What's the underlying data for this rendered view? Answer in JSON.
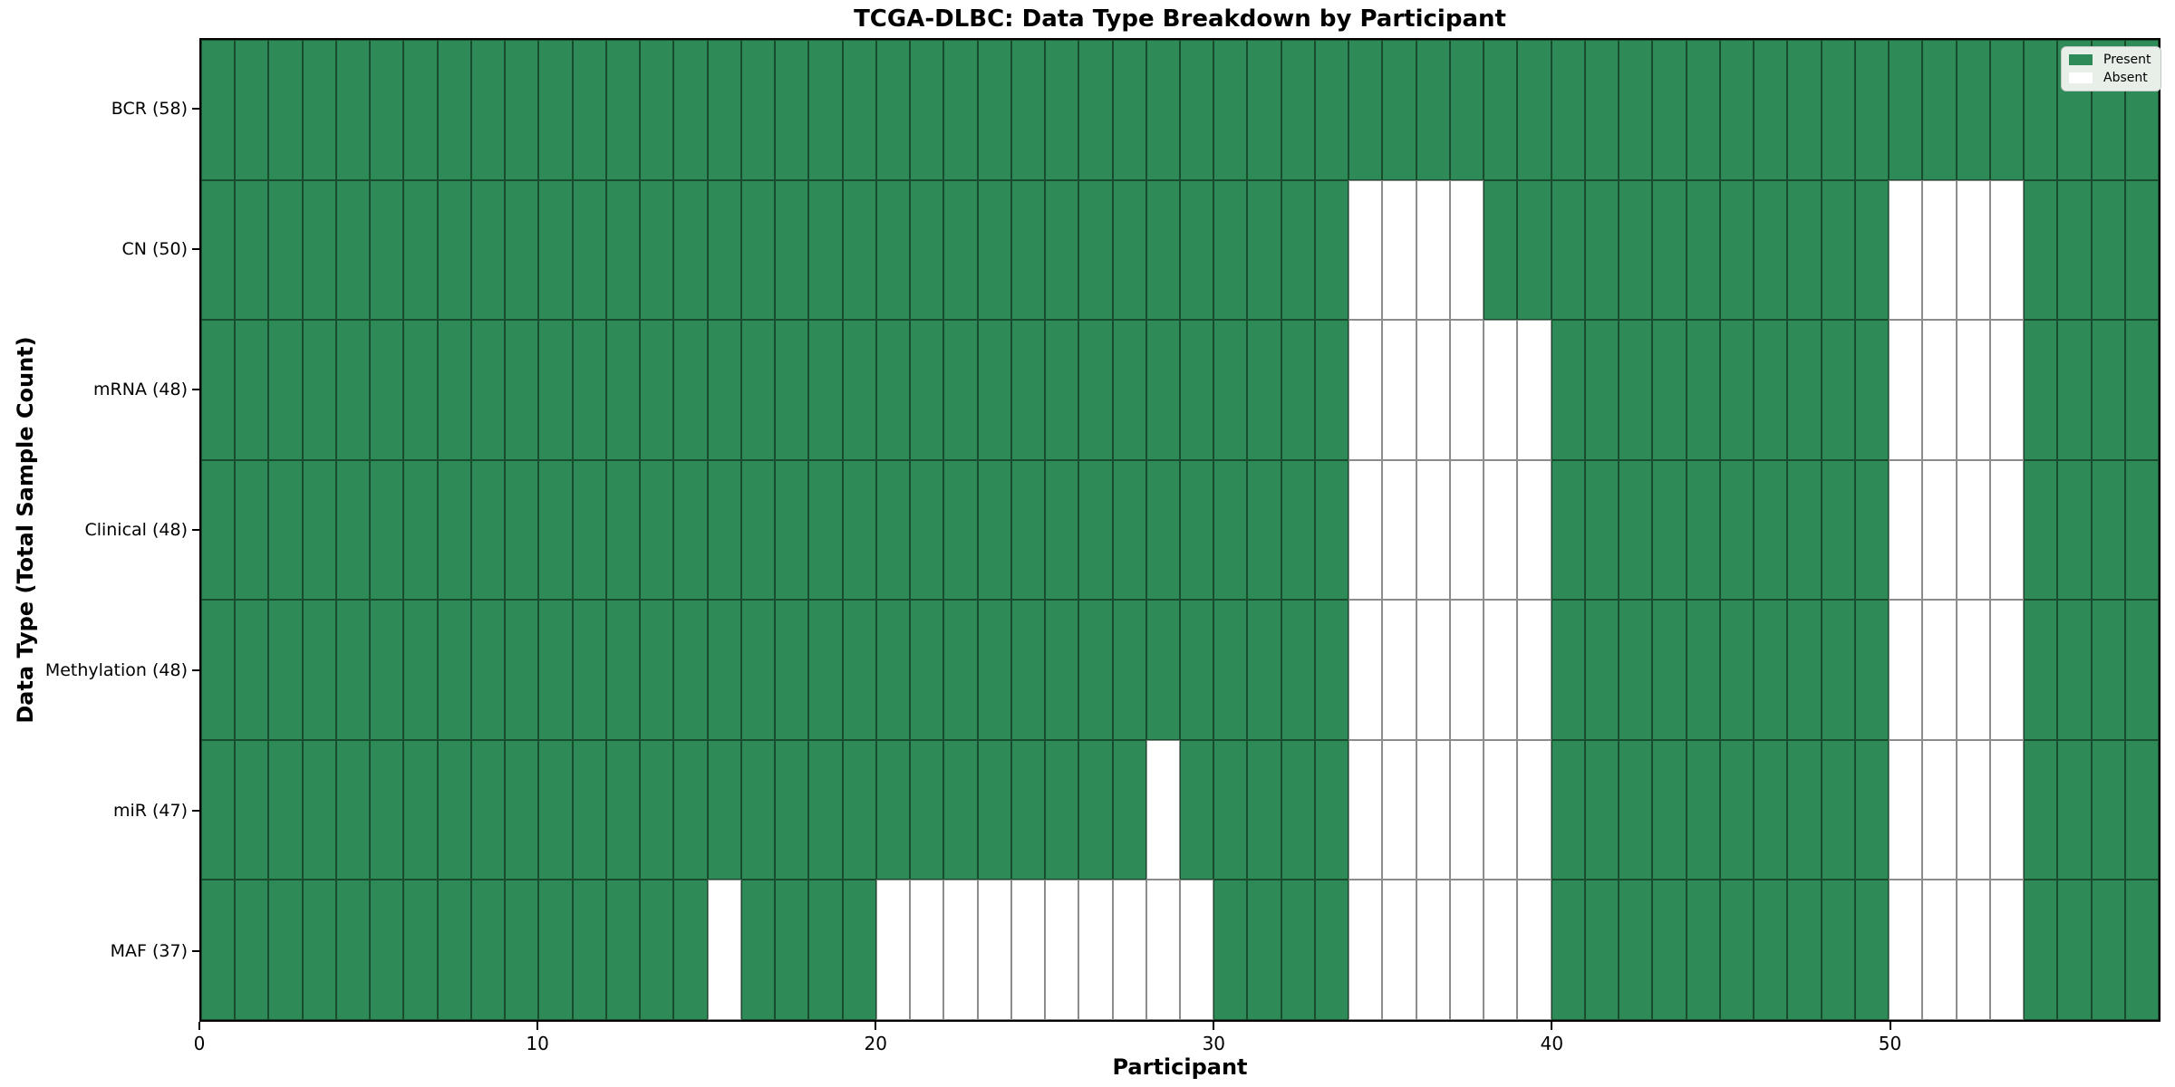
{
  "chart_data": {
    "type": "heatmap",
    "title": "TCGA-DLBC: Data Type Breakdown by Participant",
    "xlabel": "Participant",
    "ylabel": "Data Type (Total Sample Count)",
    "n_participants": 58,
    "x_ticks": [
      0,
      10,
      20,
      30,
      40,
      50
    ],
    "xlim": [
      0,
      58
    ],
    "grid": "cell-borders",
    "legend_position": "upper-right",
    "colors": {
      "present": "#2e8b57",
      "absent": "#ffffff",
      "cell_border": "rgba(0,0,0,0.45)",
      "legend_background": "#e8efe9"
    },
    "legend": [
      {
        "label": "Present",
        "color": "#2e8b57"
      },
      {
        "label": "Absent",
        "color": "#ffffff"
      }
    ],
    "rows": [
      {
        "label": "BCR (58)",
        "data_type": "BCR",
        "total_count": 58,
        "absent_participants": []
      },
      {
        "label": "CN (50)",
        "data_type": "CN",
        "total_count": 50,
        "absent_participants": [
          34,
          35,
          36,
          37,
          50,
          51,
          52,
          53
        ]
      },
      {
        "label": "mRNA (48)",
        "data_type": "mRNA",
        "total_count": 48,
        "absent_participants": [
          34,
          35,
          36,
          37,
          38,
          39,
          50,
          51,
          52,
          53
        ]
      },
      {
        "label": "Clinical (48)",
        "data_type": "Clinical",
        "total_count": 48,
        "absent_participants": [
          34,
          35,
          36,
          37,
          38,
          39,
          50,
          51,
          52,
          53
        ]
      },
      {
        "label": "Methylation (48)",
        "data_type": "Methylation",
        "total_count": 48,
        "absent_participants": [
          34,
          35,
          36,
          37,
          38,
          39,
          50,
          51,
          52,
          53
        ]
      },
      {
        "label": "miR (47)",
        "data_type": "miR",
        "total_count": 47,
        "absent_participants": [
          28,
          34,
          35,
          36,
          37,
          38,
          39,
          50,
          51,
          52,
          53
        ]
      },
      {
        "label": "MAF (37)",
        "data_type": "MAF",
        "total_count": 37,
        "absent_participants": [
          15,
          20,
          21,
          22,
          23,
          24,
          25,
          26,
          27,
          28,
          29,
          34,
          35,
          36,
          37,
          38,
          39,
          50,
          51,
          52,
          53
        ]
      }
    ]
  }
}
